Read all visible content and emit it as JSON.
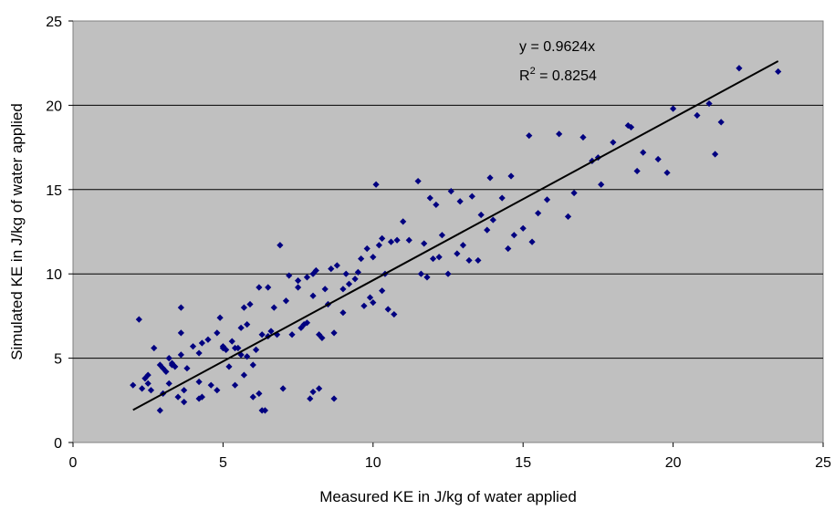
{
  "chart_data": {
    "type": "scatter",
    "xlabel": "Measured KE in J/kg of water applied",
    "ylabel": "Simulated KE in J/kg of water applied",
    "xlim": [
      0,
      25
    ],
    "ylim": [
      0,
      25
    ],
    "xticks": [
      "0",
      "5",
      "10",
      "15",
      "20",
      "25"
    ],
    "yticks": [
      "0",
      "5",
      "10",
      "15",
      "20",
      "25"
    ],
    "grid": "horizontal",
    "legend": "none",
    "trendline": {
      "type": "linear-through-origin",
      "slope": 0.9624,
      "x_range": [
        2.0,
        23.5
      ],
      "equation_label": "y = 0.9624x",
      "r2_prefix": "R",
      "r2_superscript": "2",
      "r2_suffix": " = 0.8254"
    },
    "series": [
      {
        "x": [
          2.0,
          2.2,
          2.3,
          2.4,
          2.5,
          2.5,
          2.6,
          2.7,
          2.9,
          2.9,
          3.0,
          3.0,
          3.1,
          3.2,
          3.2,
          3.3,
          3.3,
          3.4,
          3.5,
          3.6,
          3.6,
          3.6,
          3.7,
          3.7,
          3.8,
          4.0,
          4.2,
          4.2,
          4.2,
          4.3,
          4.3,
          4.5,
          4.6,
          4.8,
          4.8,
          4.9,
          5.0,
          5.0,
          5.1,
          5.2,
          5.3,
          5.4,
          5.4,
          5.5,
          5.6,
          5.6,
          5.7,
          5.7,
          5.8,
          5.8,
          5.9,
          6.0,
          6.0,
          6.1,
          6.2,
          6.2,
          6.3,
          6.3,
          6.4,
          6.5,
          6.5,
          6.6,
          6.7,
          6.8,
          6.9,
          7.0,
          7.1,
          7.2,
          7.3,
          7.5,
          7.5,
          7.6,
          7.7,
          7.8,
          7.8,
          7.9,
          8.0,
          8.0,
          8.0,
          8.1,
          8.2,
          8.2,
          8.3,
          8.4,
          8.5,
          8.6,
          8.7,
          8.7,
          8.8,
          9.0,
          9.0,
          9.1,
          9.2,
          9.4,
          9.5,
          9.6,
          9.7,
          9.8,
          9.9,
          10.0,
          10.0,
          10.1,
          10.2,
          10.3,
          10.3,
          10.4,
          10.5,
          10.6,
          10.7,
          10.8,
          11.0,
          11.2,
          11.5,
          11.6,
          11.7,
          11.8,
          11.9,
          12.0,
          12.1,
          12.2,
          12.3,
          12.5,
          12.6,
          12.8,
          12.9,
          13.0,
          13.2,
          13.3,
          13.5,
          13.6,
          13.8,
          13.9,
          14.0,
          14.3,
          14.5,
          14.6,
          14.7,
          15.0,
          15.2,
          15.3,
          15.5,
          15.8,
          16.2,
          16.5,
          16.7,
          17.0,
          17.3,
          17.5,
          17.6,
          18.0,
          18.5,
          18.6,
          18.8,
          19.0,
          19.5,
          19.8,
          20.0,
          20.8,
          21.2,
          21.4,
          21.6,
          22.2,
          23.5
        ],
        "y": [
          3.4,
          7.3,
          3.2,
          3.8,
          3.5,
          4.0,
          3.1,
          5.6,
          1.9,
          4.6,
          2.9,
          4.4,
          4.2,
          3.5,
          5.0,
          4.7,
          4.6,
          4.5,
          2.7,
          5.2,
          8.0,
          6.5,
          2.4,
          3.1,
          4.4,
          5.7,
          2.6,
          3.6,
          5.3,
          2.7,
          5.9,
          6.1,
          3.4,
          6.5,
          3.1,
          7.4,
          5.6,
          5.7,
          5.5,
          4.5,
          6.0,
          5.6,
          3.4,
          5.6,
          5.2,
          6.8,
          8.0,
          4.0,
          5.1,
          7.0,
          8.2,
          4.6,
          2.7,
          5.5,
          2.9,
          9.2,
          1.9,
          6.4,
          1.9,
          6.3,
          9.2,
          6.6,
          8.0,
          6.4,
          11.7,
          3.2,
          8.4,
          9.9,
          6.4,
          9.2,
          9.6,
          6.8,
          7.0,
          7.1,
          9.8,
          2.6,
          3.0,
          10.0,
          8.7,
          10.2,
          3.2,
          6.4,
          6.2,
          9.1,
          8.2,
          10.3,
          2.6,
          6.5,
          10.5,
          9.1,
          7.7,
          10.0,
          9.4,
          9.7,
          10.1,
          10.9,
          8.1,
          11.5,
          8.6,
          8.3,
          11.0,
          15.3,
          11.7,
          9.0,
          12.1,
          10.0,
          7.9,
          11.9,
          7.6,
          12.0,
          13.1,
          12.0,
          15.5,
          10.0,
          11.8,
          9.8,
          14.5,
          10.9,
          14.1,
          11.0,
          12.3,
          10.0,
          14.9,
          11.2,
          14.3,
          11.7,
          10.8,
          14.6,
          10.8,
          13.5,
          12.6,
          15.7,
          13.2,
          14.5,
          11.5,
          15.8,
          12.3,
          12.7,
          18.2,
          11.9,
          13.6,
          14.4,
          18.3,
          13.4,
          14.8,
          18.1,
          16.7,
          16.9,
          15.3,
          17.8,
          18.8,
          18.7,
          16.1,
          17.2,
          16.8,
          16.0,
          19.8,
          19.4,
          20.1,
          17.1,
          19.0,
          22.2,
          22.0
        ]
      }
    ]
  }
}
